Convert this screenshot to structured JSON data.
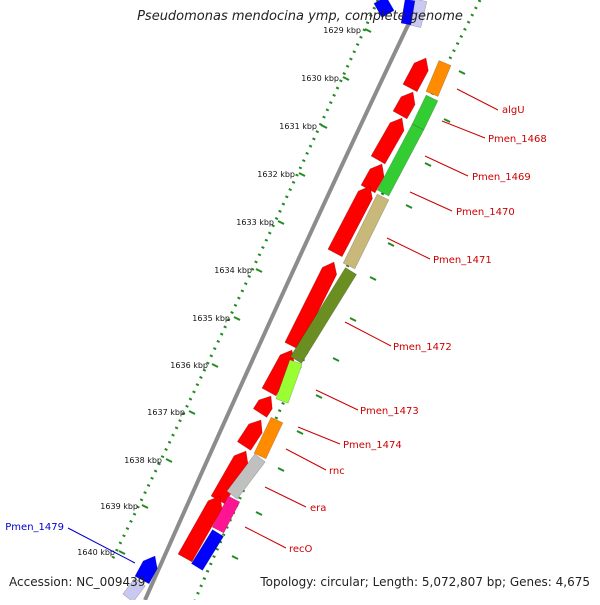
{
  "map": {
    "title": "Pseudomonas mendocina ymp, complete genome",
    "accession": "Accession: NC_009439",
    "summary": "Topology: circular; Length: 5,072,807 bp; Genes: 4,675"
  },
  "kbp_ticks": [
    {
      "label": "1629 kbp"
    },
    {
      "label": "1630 kbp"
    },
    {
      "label": "1631 kbp"
    },
    {
      "label": "1632 kbp"
    },
    {
      "label": "1633 kbp"
    },
    {
      "label": "1634 kbp"
    },
    {
      "label": "1635 kbp"
    },
    {
      "label": "1636 kbp"
    },
    {
      "label": "1637 kbp"
    },
    {
      "label": "1638 kbp"
    },
    {
      "label": "1639 kbp"
    },
    {
      "label": "1640 kbp"
    }
  ],
  "gene_labels": [
    {
      "text": "algU",
      "color": "#cc0000"
    },
    {
      "text": "Pmen_1468",
      "color": "#cc0000"
    },
    {
      "text": "Pmen_1469",
      "color": "#cc0000"
    },
    {
      "text": "Pmen_1470",
      "color": "#cc0000"
    },
    {
      "text": "Pmen_1471",
      "color": "#cc0000"
    },
    {
      "text": "Pmen_1472",
      "color": "#cc0000"
    },
    {
      "text": "Pmen_1473",
      "color": "#cc0000"
    },
    {
      "text": "Pmen_1474",
      "color": "#cc0000"
    },
    {
      "text": "rnc",
      "color": "#cc0000"
    },
    {
      "text": "era",
      "color": "#cc0000"
    },
    {
      "text": "recO",
      "color": "#cc0000"
    },
    {
      "text": "Pmen_1479",
      "color": "#0000cc"
    }
  ],
  "colors": {
    "cds": "#ff0000",
    "backbone": "#8c8c8c",
    "tick": "#228b22",
    "orange": "#ff8c00",
    "green": "#33cc33",
    "tan": "#c8b97a",
    "olive": "#6b8e23",
    "lime": "#99ff33",
    "gray": "#c0c0c0",
    "pink": "#ff1493",
    "blue": "#0000ff",
    "lavender": "#c8c8f0"
  }
}
